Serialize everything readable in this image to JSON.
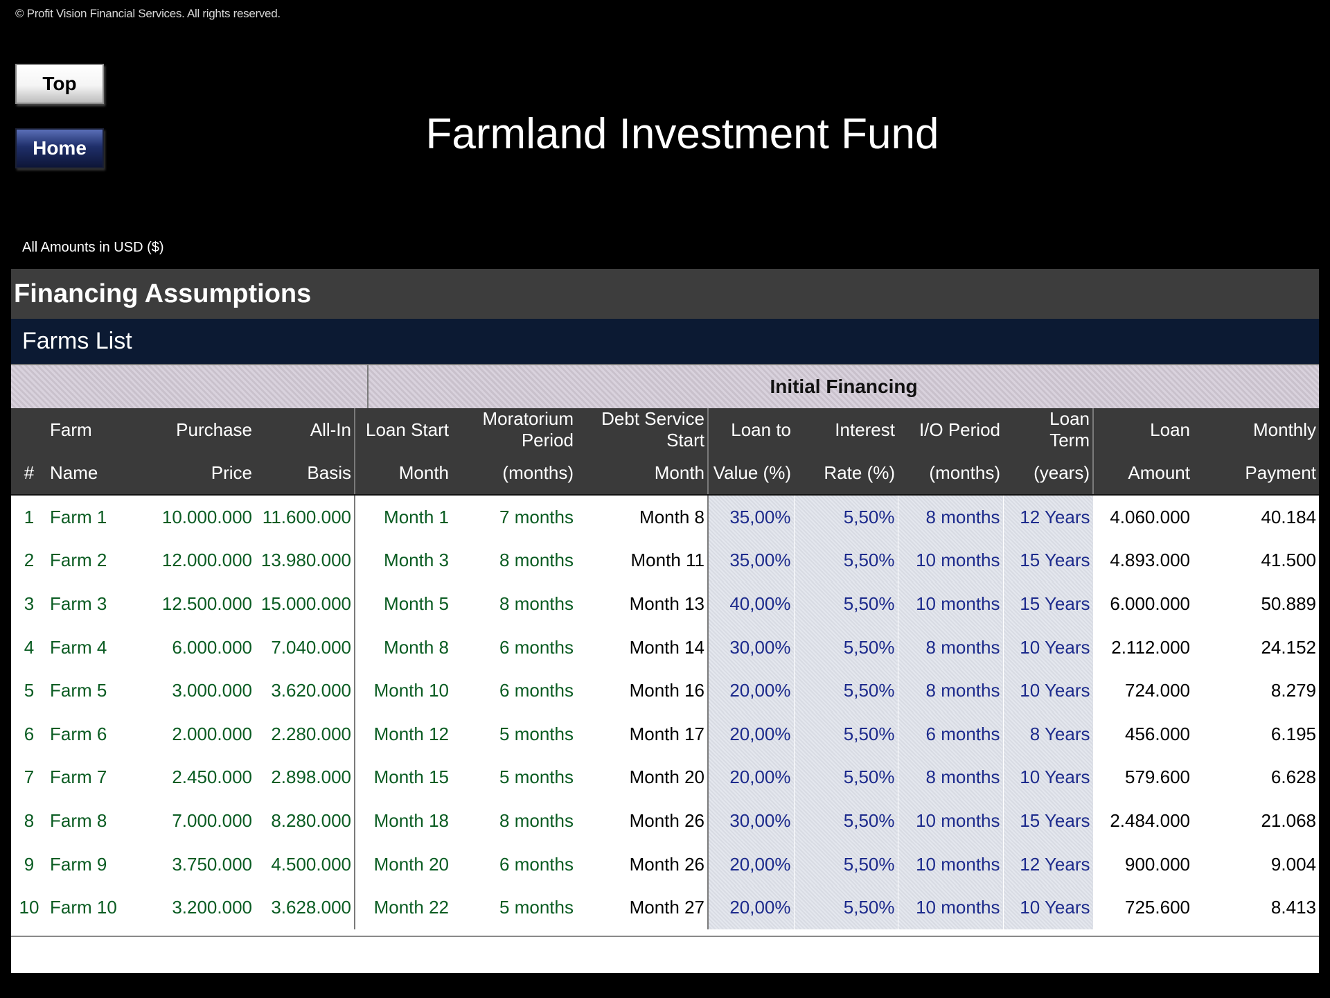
{
  "copyright": "© Profit Vision Financial Services. All rights reserved.",
  "nav": {
    "top_label": "Top",
    "home_label": "Home"
  },
  "title": "Farmland Investment Fund",
  "currency_note": "All Amounts in  USD ($)",
  "section_title": "Financing Assumptions",
  "subsection_title": "Farms List",
  "group_header": "Initial Financing",
  "columns": [
    {
      "line1": "",
      "line2": "#"
    },
    {
      "line1": "Farm",
      "line2": "Name"
    },
    {
      "line1": "Purchase",
      "line2": "Price"
    },
    {
      "line1": "All-In",
      "line2": "Basis"
    },
    {
      "line1": "Loan Start",
      "line2": "Month"
    },
    {
      "line1": "Moratorium Period",
      "line2": "(months)"
    },
    {
      "line1": "Debt Service Start",
      "line2": "Month"
    },
    {
      "line1": "Loan to",
      "line2": "Value (%)"
    },
    {
      "line1": "Interest",
      "line2": "Rate (%)"
    },
    {
      "line1": "I/O Period",
      "line2": "(months)"
    },
    {
      "line1": "Loan Term",
      "line2": "(years)"
    },
    {
      "line1": "Loan",
      "line2": "Amount"
    },
    {
      "line1": "Monthly",
      "line2": "Payment"
    }
  ],
  "rows": [
    [
      "1",
      "Farm 1",
      "10.000.000",
      "11.600.000",
      "Month 1",
      "7 months",
      "Month 8",
      "35,00%",
      "5,50%",
      "8 months",
      "12 Years",
      "4.060.000",
      "40.184"
    ],
    [
      "2",
      "Farm 2",
      "12.000.000",
      "13.980.000",
      "Month 3",
      "8 months",
      "Month 11",
      "35,00%",
      "5,50%",
      "10 months",
      "15 Years",
      "4.893.000",
      "41.500"
    ],
    [
      "3",
      "Farm 3",
      "12.500.000",
      "15.000.000",
      "Month 5",
      "8 months",
      "Month 13",
      "40,00%",
      "5,50%",
      "10 months",
      "15 Years",
      "6.000.000",
      "50.889"
    ],
    [
      "4",
      "Farm 4",
      "6.000.000",
      "7.040.000",
      "Month 8",
      "6 months",
      "Month 14",
      "30,00%",
      "5,50%",
      "8 months",
      "10 Years",
      "2.112.000",
      "24.152"
    ],
    [
      "5",
      "Farm 5",
      "3.000.000",
      "3.620.000",
      "Month 10",
      "6 months",
      "Month 16",
      "20,00%",
      "5,50%",
      "8 months",
      "10 Years",
      "724.000",
      "8.279"
    ],
    [
      "6",
      "Farm 6",
      "2.000.000",
      "2.280.000",
      "Month 12",
      "5 months",
      "Month 17",
      "20,00%",
      "5,50%",
      "6 months",
      "8 Years",
      "456.000",
      "6.195"
    ],
    [
      "7",
      "Farm 7",
      "2.450.000",
      "2.898.000",
      "Month 15",
      "5 months",
      "Month 20",
      "20,00%",
      "5,50%",
      "8 months",
      "10 Years",
      "579.600",
      "6.628"
    ],
    [
      "8",
      "Farm 8",
      "7.000.000",
      "8.280.000",
      "Month 18",
      "8 months",
      "Month 26",
      "30,00%",
      "5,50%",
      "10 months",
      "15 Years",
      "2.484.000",
      "21.068"
    ],
    [
      "9",
      "Farm 9",
      "3.750.000",
      "4.500.000",
      "Month 20",
      "6 months",
      "Month 26",
      "20,00%",
      "5,50%",
      "10 months",
      "12 Years",
      "900.000",
      "9.004"
    ],
    [
      "10",
      "Farm 10",
      "3.200.000",
      "3.628.000",
      "Month 22",
      "5 months",
      "Month 27",
      "20,00%",
      "5,50%",
      "10 months",
      "10 Years",
      "725.600",
      "8.413"
    ]
  ],
  "colors": {
    "input_green": "#0a5c22",
    "input_blue": "#1c2a8c",
    "section_bar": "#3d3d3d",
    "subsection_bar": "#0c1a33"
  }
}
